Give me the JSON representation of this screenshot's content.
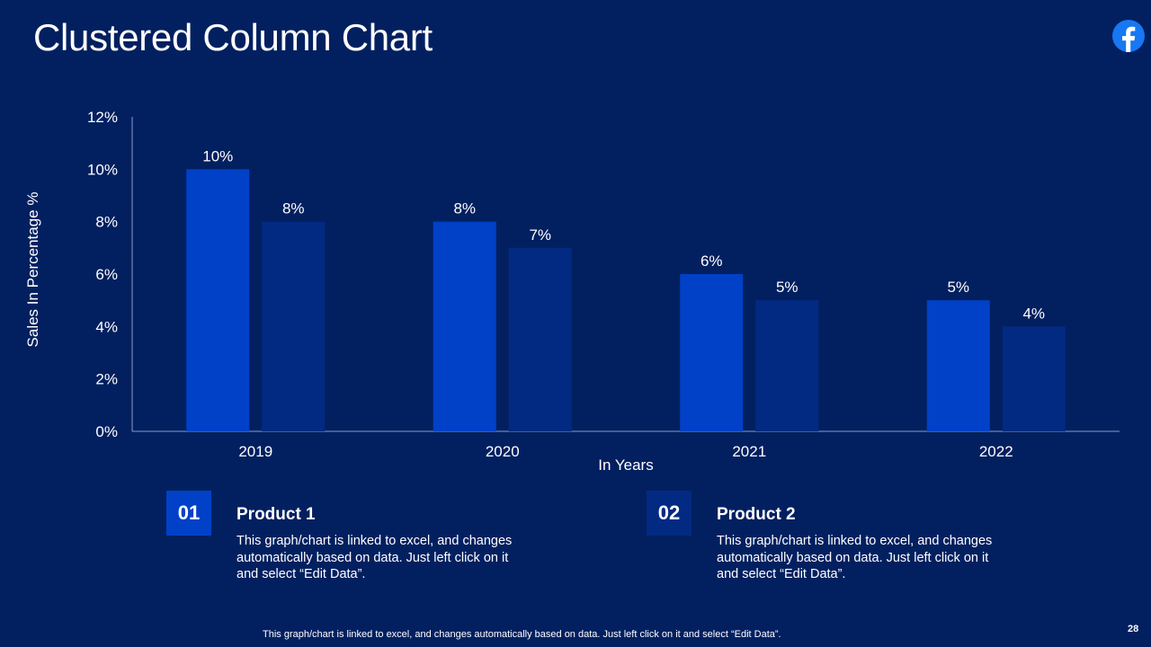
{
  "slide": {
    "title": "Clustered Column Chart",
    "page_number": "28",
    "footnote": "This graph/chart is linked to excel, and changes automatically based on data. Just left click on it and select “Edit Data”.",
    "background_color": "#022060",
    "logo_icon": "facebook-icon"
  },
  "legend": [
    {
      "number": "01",
      "name": "Product 1",
      "description": "This graph/chart is linked to excel, and changes automatically based on data. Just left click on it and select “Edit Data”.",
      "color": "#0041c8"
    },
    {
      "number": "02",
      "name": "Product 2",
      "description": "This graph/chart is linked to excel, and changes automatically based on data. Just left click on it and select “Edit Data”.",
      "color": "#022a82"
    }
  ],
  "chart_data": {
    "type": "bar",
    "title": "",
    "xlabel": "In Years",
    "ylabel": "Sales In Percentage %",
    "categories": [
      "2019",
      "2020",
      "2021",
      "2022"
    ],
    "ylim": [
      0,
      12
    ],
    "yticks": [
      0,
      2,
      4,
      6,
      8,
      10,
      12
    ],
    "ytick_labels": [
      "0%",
      "2%",
      "4%",
      "6%",
      "8%",
      "10%",
      "12%"
    ],
    "grid": false,
    "series": [
      {
        "name": "Product 1",
        "values": [
          10,
          8,
          6,
          5
        ],
        "labels": [
          "10%",
          "8%",
          "6%",
          "5%"
        ],
        "color": "#0041c8"
      },
      {
        "name": "Product 2",
        "values": [
          8,
          7,
          5,
          4
        ],
        "labels": [
          "8%",
          "7%",
          "5%",
          "4%"
        ],
        "color": "#022a82"
      }
    ]
  }
}
